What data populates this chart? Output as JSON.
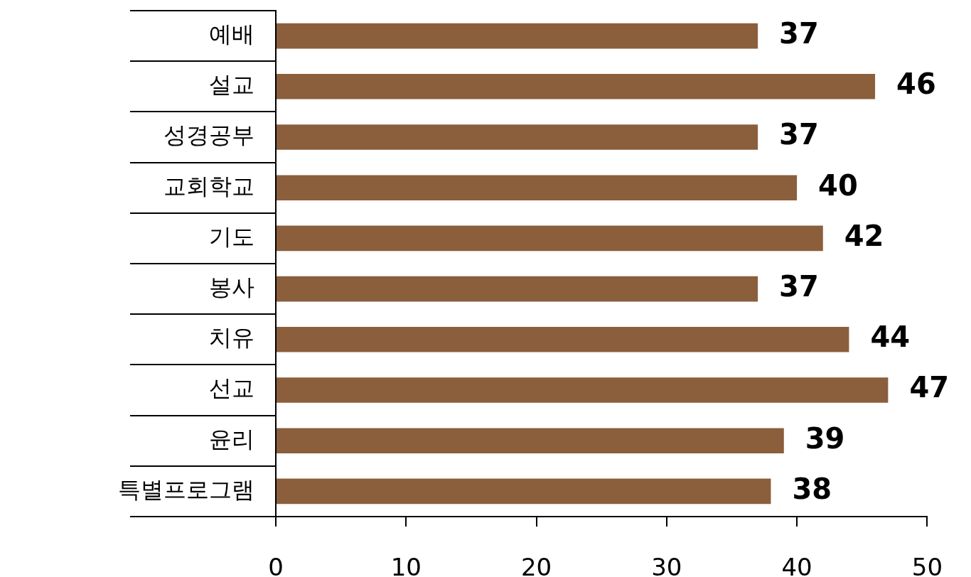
{
  "chart_data": {
    "type": "bar",
    "orientation": "horizontal",
    "categories": [
      "예배",
      "설교",
      "성경공부",
      "교회학교",
      "기도",
      "봉사",
      "치유",
      "선교",
      "윤리",
      "특별프로그램"
    ],
    "values": [
      37,
      46,
      37,
      40,
      42,
      37,
      44,
      47,
      39,
      38
    ],
    "color": "#8b5e3c",
    "xlim": [
      0,
      50
    ],
    "xticks": [
      0,
      10,
      20,
      30,
      40,
      50
    ],
    "data_labels": true
  }
}
